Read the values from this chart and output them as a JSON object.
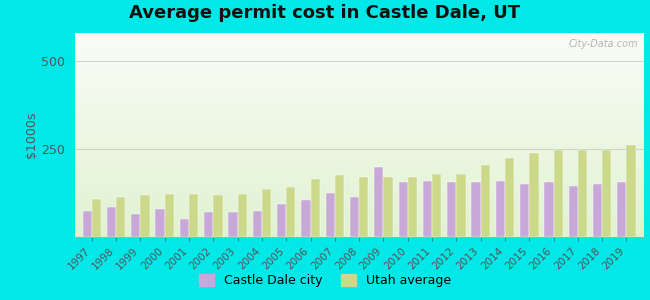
{
  "title": "Average permit cost in Castle Dale, UT",
  "ylabel": "$1000s",
  "years": [
    1997,
    1998,
    1999,
    2000,
    2001,
    2002,
    2003,
    2004,
    2005,
    2006,
    2007,
    2008,
    2009,
    2010,
    2011,
    2012,
    2013,
    2014,
    2015,
    2016,
    2017,
    2018,
    2019
  ],
  "castle_dale": [
    75,
    85,
    65,
    80,
    50,
    70,
    70,
    75,
    95,
    105,
    125,
    115,
    200,
    155,
    160,
    155,
    155,
    160,
    150,
    155,
    145,
    150,
    155
  ],
  "utah_avg": [
    108,
    115,
    118,
    122,
    122,
    118,
    122,
    136,
    142,
    165,
    175,
    170,
    170,
    170,
    180,
    180,
    205,
    225,
    240,
    248,
    248,
    248,
    262
  ],
  "castle_dale_color": "#c8a8d8",
  "utah_avg_color": "#ccd88a",
  "bar_width": 0.38,
  "ylim": [
    0,
    580
  ],
  "yticks": [
    0,
    250,
    500
  ],
  "outer_bg": "#00e8e8",
  "plot_bg_top": "#f5faf0",
  "plot_bg_bottom": "#d8eec8",
  "watermark": "City-Data.com",
  "legend_castle": "Castle Dale city",
  "legend_utah": "Utah average",
  "title_fontsize": 13,
  "axis_fontsize": 9
}
